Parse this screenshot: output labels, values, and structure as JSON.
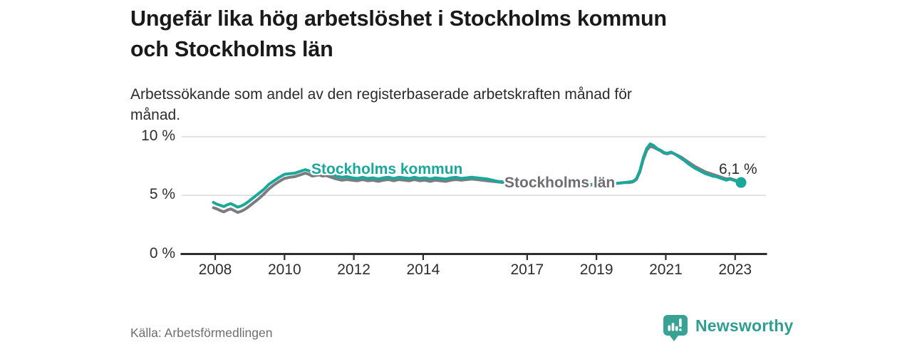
{
  "header": {
    "title": "Ungefär lika hög arbetslöshet i Stockholms kommun och Stockholms län",
    "title_lines": [
      "Ungefär lika hög arbetslöshet i Stockholms kommun",
      "och Stockholms län"
    ],
    "subtitle": "Arbetssökande som andel av den registerbaserade arbetskraften månad för månad.",
    "subtitle_lines": [
      "Arbetssökande som andel av den registerbaserade arbetskraften månad för",
      "månad."
    ]
  },
  "footer": {
    "source": "Källa: Arbetsförmedlingen",
    "brand": "Newsworthy"
  },
  "colors": {
    "accent_teal": "#1ba79a",
    "line_gray": "#7b7b80",
    "label_gray": "#6e6e73",
    "axis": "#2d2d2d",
    "gridline": "#dadada",
    "title_text": "#1a1a1a",
    "body_text": "#2b2b2b",
    "source_text": "#6d6d72",
    "logo_teal": "#38a394"
  },
  "chart_data": {
    "type": "line",
    "title": "Ungefär lika hög arbetslöshet i Stockholms kommun och Stockholms län",
    "subtitle": "Arbetssökande som andel av den registerbaserade arbetskraften månad för månad.",
    "xlabel": "",
    "ylabel": "",
    "unit": "%",
    "grid": "horizontal",
    "legend_position": "inline-labels",
    "xlim": [
      2007.5,
      2023.9
    ],
    "ylim": [
      0,
      10.5
    ],
    "x_ticks": [
      2008,
      2010,
      2012,
      2014,
      2017,
      2019,
      2021,
      2023
    ],
    "x_tick_labels": [
      "2008",
      "2010",
      "2012",
      "2014",
      "2017",
      "2019",
      "2021",
      "2023"
    ],
    "y_ticks": [
      0,
      5,
      10
    ],
    "y_tick_labels": [
      "0 %",
      "5 %",
      "10 %"
    ],
    "end_label": "6,1 %",
    "end_value": 6.1,
    "x": [
      2007.95,
      2008.05,
      2008.15,
      2008.25,
      2008.35,
      2008.45,
      2008.55,
      2008.65,
      2008.75,
      2008.85,
      2008.95,
      2009.1,
      2009.25,
      2009.4,
      2009.55,
      2009.7,
      2009.85,
      2010.0,
      2010.15,
      2010.3,
      2010.45,
      2010.6,
      2010.7,
      2010.8,
      2010.9,
      2011.0,
      2011.1,
      2011.2,
      2011.35,
      2011.5,
      2011.65,
      2011.8,
      2011.95,
      2012.1,
      2012.25,
      2012.4,
      2012.55,
      2012.7,
      2012.85,
      2013.0,
      2013.15,
      2013.3,
      2013.45,
      2013.6,
      2013.75,
      2013.9,
      2014.05,
      2014.2,
      2014.35,
      2014.5,
      2014.65,
      2014.8,
      2014.95,
      2015.1,
      2015.25,
      2015.4,
      2015.55,
      2015.7,
      2015.85,
      2016.0,
      2016.15,
      2016.3,
      2016.45,
      2016.6,
      2016.75,
      2016.9,
      2017.1,
      2017.3,
      2017.5,
      2017.7,
      2017.9,
      2018.1,
      2018.3,
      2018.5,
      2018.7,
      2018.9,
      2019.05,
      2019.2,
      2019.35,
      2019.5,
      2019.65,
      2019.8,
      2019.95,
      2020.05,
      2020.15,
      2020.25,
      2020.35,
      2020.45,
      2020.55,
      2020.65,
      2020.75,
      2020.85,
      2020.95,
      2021.05,
      2021.15,
      2021.25,
      2021.35,
      2021.45,
      2021.55,
      2021.65,
      2021.75,
      2021.85,
      2021.95,
      2022.05,
      2022.15,
      2022.25,
      2022.35,
      2022.45,
      2022.55,
      2022.65,
      2022.75,
      2022.85,
      2022.95,
      2023.05,
      2023.17
    ],
    "series": [
      {
        "name": "Stockholms län",
        "color": "#7b7b80",
        "values": [
          3.95,
          3.85,
          3.7,
          3.6,
          3.75,
          3.85,
          3.7,
          3.55,
          3.65,
          3.8,
          4.0,
          4.35,
          4.7,
          5.1,
          5.55,
          5.9,
          6.2,
          6.45,
          6.55,
          6.6,
          6.75,
          6.9,
          6.8,
          6.65,
          6.7,
          6.75,
          6.65,
          6.7,
          6.55,
          6.4,
          6.3,
          6.35,
          6.3,
          6.25,
          6.35,
          6.25,
          6.3,
          6.2,
          6.3,
          6.35,
          6.25,
          6.35,
          6.3,
          6.25,
          6.35,
          6.25,
          6.3,
          6.2,
          6.3,
          6.25,
          6.2,
          6.3,
          6.35,
          6.3,
          6.35,
          6.4,
          6.35,
          6.3,
          6.25,
          6.2,
          6.15,
          6.1,
          6.1,
          6.05,
          6.05,
          6.0,
          6.05,
          6.0,
          6.0,
          5.95,
          5.95,
          5.9,
          5.9,
          5.85,
          5.9,
          5.95,
          6.0,
          6.0,
          6.05,
          6.0,
          6.05,
          6.1,
          6.1,
          6.15,
          6.35,
          7.0,
          8.05,
          8.85,
          9.2,
          9.1,
          8.95,
          8.8,
          8.6,
          8.55,
          8.65,
          8.55,
          8.4,
          8.25,
          8.05,
          7.85,
          7.65,
          7.45,
          7.3,
          7.15,
          7.0,
          6.9,
          6.8,
          6.7,
          6.6,
          6.5,
          6.4,
          6.45,
          6.35,
          6.25,
          6.2
        ]
      },
      {
        "name": "Stockholms kommun",
        "color": "#1ba79a",
        "values": [
          4.4,
          4.25,
          4.15,
          4.05,
          4.2,
          4.3,
          4.15,
          4.0,
          4.1,
          4.25,
          4.45,
          4.8,
          5.15,
          5.5,
          5.95,
          6.25,
          6.55,
          6.8,
          6.85,
          6.9,
          7.05,
          7.2,
          7.1,
          6.95,
          7.0,
          7.05,
          6.95,
          7.0,
          6.8,
          6.65,
          6.55,
          6.6,
          6.5,
          6.45,
          6.55,
          6.45,
          6.5,
          6.4,
          6.5,
          6.55,
          6.45,
          6.55,
          6.5,
          6.45,
          6.55,
          6.45,
          6.5,
          6.4,
          6.5,
          6.45,
          6.4,
          6.5,
          6.55,
          6.45,
          6.5,
          6.55,
          6.5,
          6.45,
          6.4,
          6.3,
          6.2,
          6.15,
          6.1,
          6.05,
          6.0,
          6.0,
          6.05,
          6.0,
          5.95,
          5.9,
          5.9,
          5.85,
          5.85,
          5.8,
          5.85,
          5.9,
          5.95,
          6.0,
          6.0,
          6.0,
          6.05,
          6.1,
          6.15,
          6.2,
          6.4,
          7.1,
          8.2,
          9.0,
          9.4,
          9.25,
          9.0,
          8.85,
          8.65,
          8.6,
          8.7,
          8.55,
          8.35,
          8.15,
          7.95,
          7.7,
          7.5,
          7.3,
          7.15,
          7.0,
          6.85,
          6.75,
          6.65,
          6.6,
          6.5,
          6.4,
          6.3,
          6.4,
          6.3,
          6.2,
          6.1
        ]
      }
    ]
  }
}
